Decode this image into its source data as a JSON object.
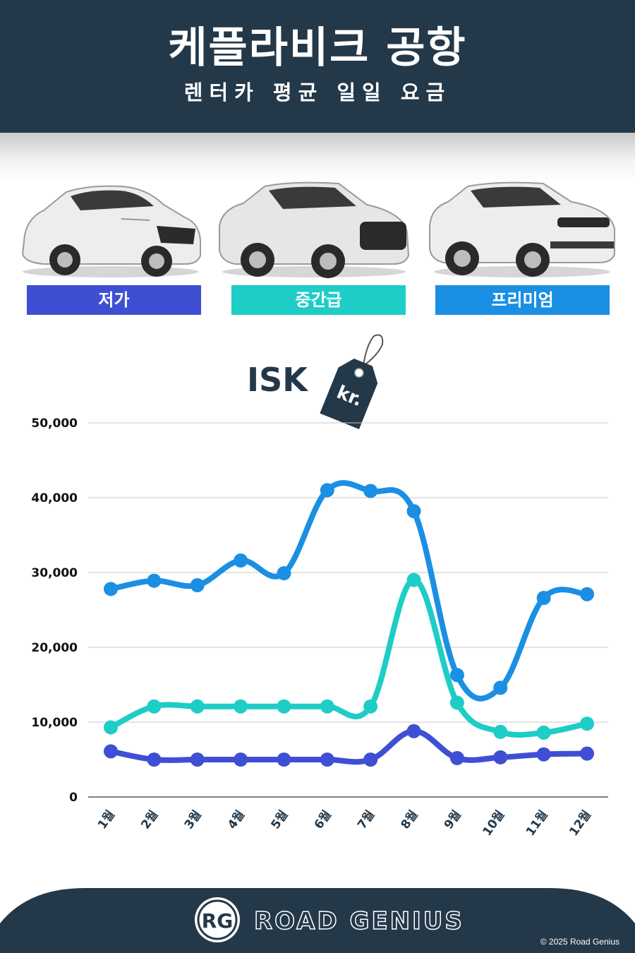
{
  "header": {
    "title": "케플라비크 공항",
    "subtitle": "렌터카 평균 일일 요금"
  },
  "categories": [
    {
      "label": "저가",
      "color": "#3f4fd4"
    },
    {
      "label": "중간급",
      "color": "#1ecdc6"
    },
    {
      "label": "프리미엄",
      "color": "#1a8fe3"
    }
  ],
  "currency": {
    "label": "ISK",
    "tag_text": "kr."
  },
  "chart_data": {
    "type": "line",
    "categories": [
      "1월",
      "2월",
      "3월",
      "4월",
      "5월",
      "6월",
      "7월",
      "8월",
      "9월",
      "10월",
      "11월",
      "12월"
    ],
    "ylim": [
      0,
      50000
    ],
    "yticks": [
      0,
      10000,
      20000,
      30000,
      40000,
      50000
    ],
    "ytick_labels": [
      "0",
      "10,000",
      "20,000",
      "30,000",
      "40,000",
      "50,000"
    ],
    "grid": true,
    "series": [
      {
        "name": "프리미엄",
        "color": "#1a8fe3",
        "values": [
          27800,
          28900,
          28300,
          31600,
          29900,
          41000,
          40900,
          38200,
          16300,
          14600,
          26600,
          27100
        ]
      },
      {
        "name": "중간급",
        "color": "#1ecdc6",
        "values": [
          9300,
          12100,
          12100,
          12100,
          12100,
          12100,
          12100,
          29000,
          12600,
          8700,
          8600,
          9800
        ]
      },
      {
        "name": "저가",
        "color": "#3f4fd4",
        "values": [
          6100,
          5000,
          5000,
          5000,
          5000,
          5000,
          5000,
          8800,
          5200,
          5300,
          5700,
          5800
        ]
      }
    ]
  },
  "footer": {
    "logo_text": "RG",
    "brand": "ROAD GENIUS",
    "copyright": "© 2025 Road Genius"
  }
}
